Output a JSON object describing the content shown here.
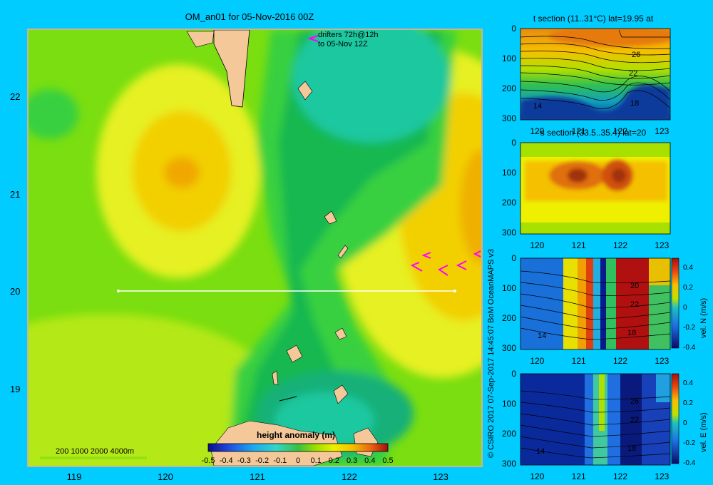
{
  "main_map": {
    "title": "OM_an01 for 05-Nov-2016 00Z",
    "drifters_label_line1": "drifters 72h@12h",
    "drifters_label_line2": "to 05-Nov 12Z",
    "depth_legend": "200  1000  2000  4000m",
    "colorbar_title": "height anomaly (m)",
    "colorbar_ticks": [
      "-0.5",
      "-0.4",
      "-0.3",
      "-0.2",
      "-0.1",
      "0",
      "0.1",
      "0.2",
      "0.3",
      "0.4",
      "0.5"
    ],
    "section_latitude": 20
  },
  "side_label": "© CSIRO 2017   07-Sep-2017 14:45:07 BoM OceanMAPS v3",
  "panels": {
    "t": {
      "title": "t section (11..31°C) lat=19.95 at"
    },
    "s": {
      "title": "s section (33.5..35.4) lat=20"
    },
    "n": {
      "colorbar_label": "vel. N (m/s)"
    },
    "e": {
      "colorbar_label": "vel. E (m/s)"
    }
  },
  "chart_data": [
    {
      "type": "heatmap",
      "name": "height anomaly map",
      "title": "OM_an01 for 05-Nov-2016 00Z",
      "x_ticks": [
        119,
        120,
        121,
        122,
        123
      ],
      "y_ticks": [
        22,
        21,
        20,
        19
      ],
      "xlim": [
        118.5,
        123.5
      ],
      "ylim": [
        18.2,
        22.7
      ],
      "colorbar_label": "height anomaly (m)",
      "colorbar_range": [
        -0.5,
        0.5
      ],
      "section_line": {
        "lat": 20,
        "lon_start": 119.5,
        "lon_end": 123.2
      }
    },
    {
      "type": "heatmap",
      "title": "t section (11..31°C) lat=19.95 at",
      "x_ticks": [
        120,
        121,
        122,
        123
      ],
      "y_ticks": [
        0,
        100,
        200,
        300
      ],
      "contour_labels": [
        "26",
        "22",
        "18",
        "14"
      ]
    },
    {
      "type": "heatmap",
      "title": "s section (33.5..35.4) lat=20",
      "x_ticks": [
        120,
        121,
        122,
        123
      ],
      "y_ticks": [
        0,
        100,
        200,
        300
      ]
    },
    {
      "type": "heatmap",
      "colorbar_label": "vel. N (m/s)",
      "x_ticks": [
        120,
        121,
        122,
        123
      ],
      "y_ticks": [
        0,
        100,
        200,
        300
      ],
      "colorbar_ticks": [
        "0.4",
        "0.2",
        "0",
        "-0.2",
        "-0.4"
      ],
      "contour_labels": [
        "20",
        "22",
        "18",
        "14"
      ]
    },
    {
      "type": "heatmap",
      "colorbar_label": "vel. E (m/s)",
      "x_ticks": [
        120,
        121,
        122,
        123
      ],
      "y_ticks": [
        0,
        100,
        200,
        300
      ],
      "colorbar_ticks": [
        "0.4",
        "0.2",
        "0",
        "-0.2",
        "-0.4"
      ],
      "contour_labels": [
        "26",
        "22",
        "18",
        "14"
      ]
    }
  ]
}
